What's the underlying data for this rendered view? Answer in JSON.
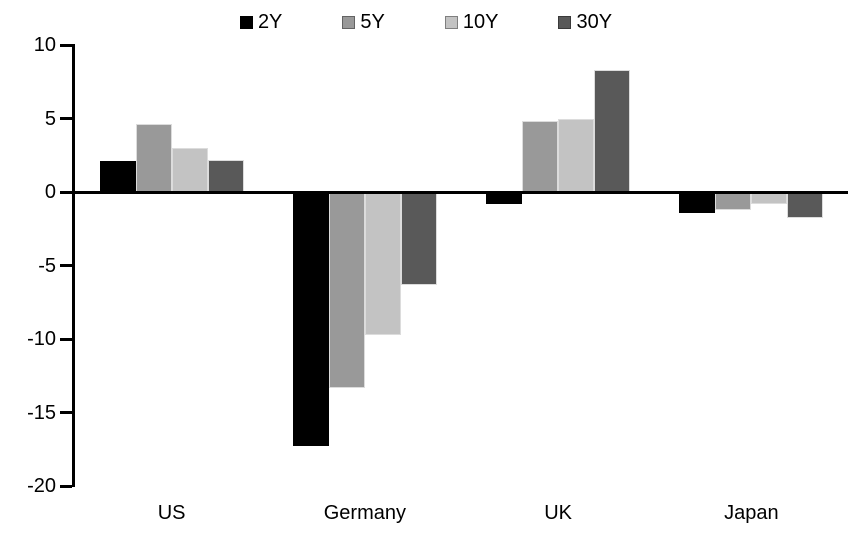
{
  "chart_data": {
    "type": "bar",
    "title": "",
    "categories": [
      "US",
      "Germany",
      "UK",
      "Japan"
    ],
    "series": [
      {
        "name": "2Y",
        "color": "#000000",
        "values": [
          2.1,
          -17.3,
          -0.8,
          -1.4
        ]
      },
      {
        "name": "5Y",
        "color": "#999999",
        "values": [
          4.6,
          -13.3,
          4.8,
          -1.2
        ]
      },
      {
        "name": "10Y",
        "color": "#c3c3c3",
        "values": [
          3.0,
          -9.7,
          5.0,
          -0.8
        ]
      },
      {
        "name": "30Y",
        "color": "#595959",
        "values": [
          2.2,
          -6.3,
          8.3,
          -1.8
        ]
      }
    ],
    "yticks": [
      10,
      5,
      0,
      -5,
      -10,
      -15,
      -20
    ],
    "ylim": [
      -20,
      10
    ],
    "xlabel": "",
    "ylabel": "",
    "grid": false,
    "legend_position": "top",
    "axis_color": "#000000",
    "background": "#ffffff"
  }
}
